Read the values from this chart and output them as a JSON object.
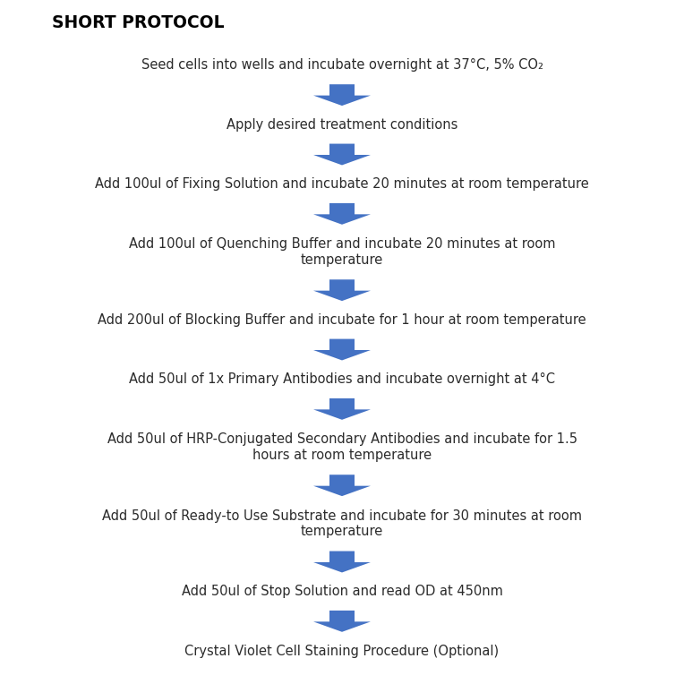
{
  "title": "SHORT PROTOCOL",
  "title_fontsize": 13.5,
  "title_fontweight": "bold",
  "arrow_color": "#4472C4",
  "text_color": "#2b2b2b",
  "background_color": "#ffffff",
  "steps": [
    "Seed cells into wells and incubate overnight at 37°C, 5% CO₂",
    "Apply desired treatment conditions",
    "Add 100ul of Fixing Solution and incubate 20 minutes at room temperature",
    "Add 100ul of Quenching Buffer and incubate 20 minutes at room\ntemperature",
    "Add 200ul of Blocking Buffer and incubate for 1 hour at room temperature",
    "Add 50ul of 1x Primary Antibodies and incubate overnight at 4°C",
    "Add 50ul of HRP-Conjugated Secondary Antibodies and incubate for 1.5\nhours at room temperature",
    "Add 50ul of Ready-to Use Substrate and incubate for 30 minutes at room\ntemperature",
    "Add 50ul of Stop Solution and read OD at 450nm",
    "Crystal Violet Cell Staining Procedure (Optional)"
  ],
  "text_fontsize": 10.5,
  "fig_width": 7.64,
  "fig_height": 7.64,
  "dpi": 100
}
